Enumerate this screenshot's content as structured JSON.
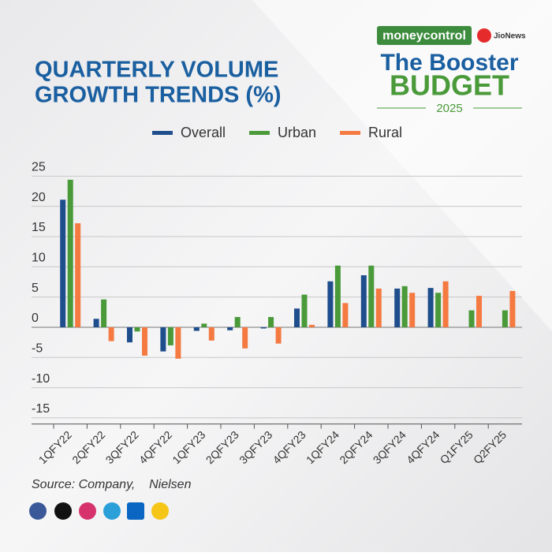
{
  "branding": {
    "publisher": "moneycontrol",
    "partner": "JioNews",
    "campaign_line1": "The Booster",
    "campaign_line2": "BUDGET",
    "campaign_year": "2025"
  },
  "chart_data": {
    "type": "bar",
    "title_line1": "QUARTERLY VOLUME",
    "title_line2": "GROWTH TRENDS (%)",
    "categories": [
      "1QFY22",
      "2QFY22",
      "3QFY22",
      "4QFY22",
      "1QFY23",
      "2QFY23",
      "3QFY23",
      "4QFY23",
      "1QFY24",
      "2QFY24",
      "3QFY24",
      "4QFY24",
      "Q1FY25",
      "Q2FY25"
    ],
    "series": [
      {
        "name": "Overall",
        "color": "#1f4e8c",
        "values": [
          21.1,
          1.4,
          -2.5,
          -4.0,
          -0.6,
          -0.5,
          -0.2,
          3.1,
          7.6,
          8.6,
          6.4,
          6.5,
          null,
          null
        ]
      },
      {
        "name": "Urban",
        "color": "#4a9a3a",
        "values": [
          24.4,
          4.6,
          -0.7,
          -3.0,
          0.6,
          1.7,
          1.7,
          5.4,
          10.2,
          10.2,
          6.8,
          5.7,
          2.8,
          2.8
        ]
      },
      {
        "name": "Rural",
        "color": "#f47a42",
        "values": [
          17.2,
          -2.3,
          -4.7,
          -5.2,
          -2.2,
          -3.5,
          -2.7,
          0.4,
          4.0,
          6.4,
          5.7,
          7.6,
          5.2,
          6.0
        ]
      }
    ],
    "ylim": [
      -16,
      27
    ],
    "yticks": [
      25,
      20,
      15,
      10,
      5,
      0,
      -5,
      -10,
      -15
    ],
    "grid": true,
    "legend": "top",
    "source": "Source: Company,    Nielsen"
  }
}
